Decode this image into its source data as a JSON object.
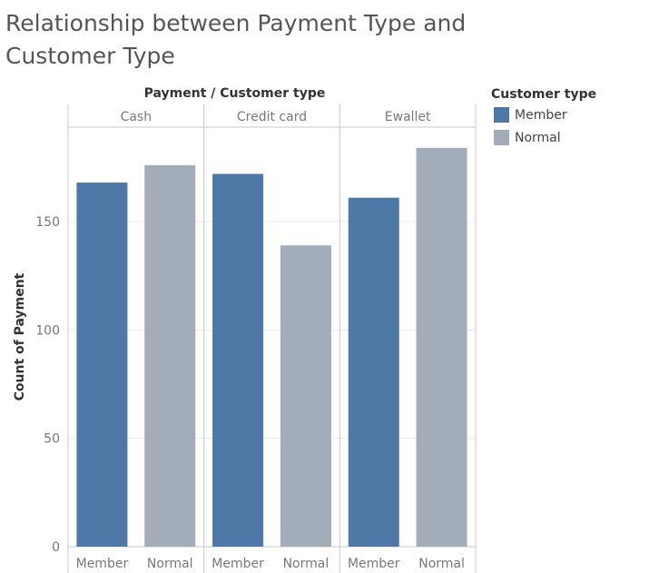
{
  "title": "Relationship between Payment Type and Customer Type",
  "legend": {
    "title": "Customer type",
    "items": [
      {
        "label": "Member",
        "color": "#4e79a7"
      },
      {
        "label": "Normal",
        "color": "#a3acb9"
      }
    ]
  },
  "chart_data": {
    "type": "bar",
    "header": "Payment / Customer type",
    "ylabel": "Count of Payment",
    "ylim": [
      0,
      190
    ],
    "yticks": [
      0,
      50,
      100,
      150
    ],
    "grid": true,
    "legend_placement": "right",
    "panels": [
      {
        "name": "Cash",
        "categories": [
          "Member",
          "Normal"
        ],
        "values": [
          168,
          176
        ]
      },
      {
        "name": "Credit card",
        "categories": [
          "Member",
          "Normal"
        ],
        "values": [
          172,
          139
        ]
      },
      {
        "name": "Ewallet",
        "categories": [
          "Member",
          "Normal"
        ],
        "values": [
          161,
          184
        ]
      }
    ],
    "colors": {
      "Member": "#4e79a7",
      "Normal": "#a3acb9"
    }
  }
}
